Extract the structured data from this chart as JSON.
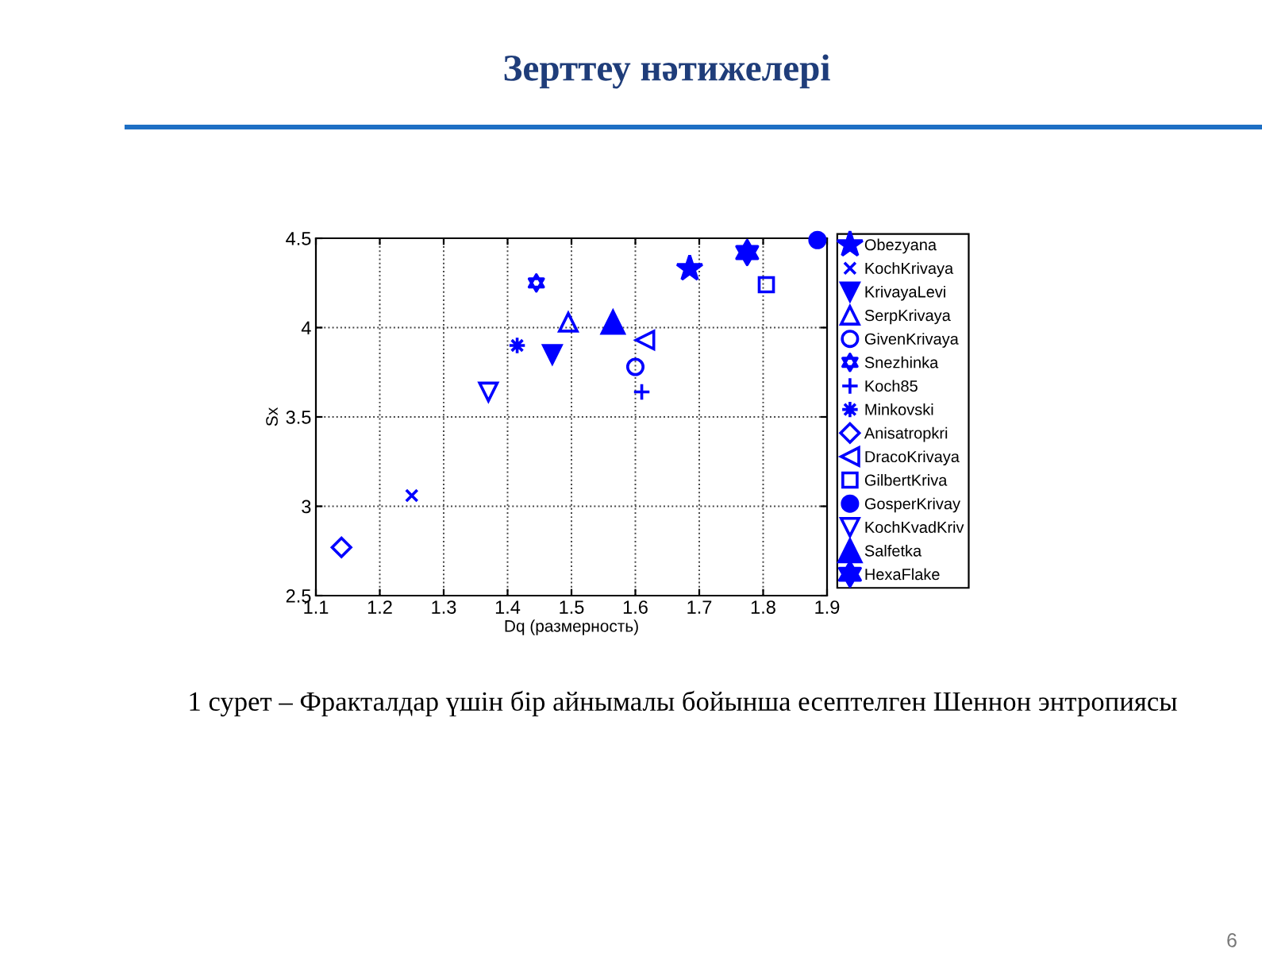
{
  "chart_data": {
    "type": "scatter",
    "title": "Зерттеу нәтижелері",
    "xlabel": "Dq (размерность)",
    "ylabel": "Sx",
    "annotations": [
      "1 сурет – Фракталдар үшін бір айнымалы бойынша есептелген Шеннон энтропиясы",
      "6"
    ],
    "xlim": [
      1.1,
      1.9
    ],
    "ylim": [
      2.5,
      4.5
    ],
    "xticks": [
      1.1,
      1.2,
      1.3,
      1.4,
      1.5,
      1.6,
      1.7,
      1.8,
      1.9
    ],
    "yticks": [
      2.5,
      3,
      3.5,
      4,
      4.5
    ],
    "grid": true,
    "legend": "right",
    "series": [
      {
        "name": "Obezyana",
        "color": "#0000ff",
        "marker": "star",
        "x": [
          1.685
        ],
        "values": [
          4.33
        ]
      },
      {
        "name": "KochKrivaya",
        "color": "#0000ff",
        "marker": "x",
        "x": [
          1.25
        ],
        "values": [
          3.06
        ]
      },
      {
        "name": "KrivayaLevi",
        "color": "#0000ff",
        "marker": "triangle-down",
        "x": [
          1.47
        ],
        "values": [
          3.85
        ]
      },
      {
        "name": "SerpKrivaya",
        "color": "#0000ff",
        "marker": "triangle-up-open",
        "x": [
          1.495
        ],
        "values": [
          4.03
        ]
      },
      {
        "name": "GivenKrivaya",
        "color": "#0000ff",
        "marker": "circle-open",
        "x": [
          1.6
        ],
        "values": [
          3.78
        ]
      },
      {
        "name": "Snezhinka",
        "color": "#0000ff",
        "marker": "star-6-open",
        "x": [
          1.445
        ],
        "values": [
          4.25
        ]
      },
      {
        "name": "Koch85",
        "color": "#0000ff",
        "marker": "cross",
        "x": [
          1.61
        ],
        "values": [
          3.64
        ]
      },
      {
        "name": "Minkovski",
        "color": "#0000ff",
        "marker": "asterisk",
        "x": [
          1.415
        ],
        "values": [
          3.9
        ]
      },
      {
        "name": "Anisatropkri",
        "color": "#0000ff",
        "marker": "diamond-open",
        "x": [
          1.14
        ],
        "values": [
          2.77
        ]
      },
      {
        "name": "DracoKrivaya",
        "color": "#0000ff",
        "marker": "triangle-left-open",
        "x": [
          1.615
        ],
        "values": [
          3.93
        ]
      },
      {
        "name": "GilbertKriva",
        "color": "#0000ff",
        "marker": "square-open",
        "x": [
          1.805
        ],
        "values": [
          4.24
        ]
      },
      {
        "name": "GosperKrivay",
        "color": "#0000ff",
        "marker": "circle",
        "x": [
          1.885
        ],
        "values": [
          4.49
        ]
      },
      {
        "name": "KochKvadKriv",
        "color": "#0000ff",
        "marker": "triangle-down-open",
        "x": [
          1.37
        ],
        "values": [
          3.64
        ]
      },
      {
        "name": "Salfetka",
        "color": "#0000ff",
        "marker": "triangle-up",
        "x": [
          1.565
        ],
        "values": [
          4.03
        ]
      },
      {
        "name": "HexaFlake",
        "color": "#0000ff",
        "marker": "star-6",
        "x": [
          1.775
        ],
        "values": [
          4.42
        ]
      }
    ]
  }
}
